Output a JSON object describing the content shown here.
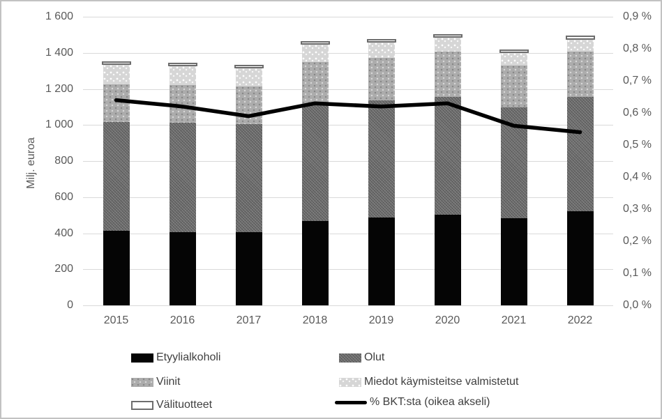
{
  "window": {
    "background": "#ffffff",
    "frame_border_color": "#c2c2c2"
  },
  "chart_data": {
    "type": "bar",
    "subtype": "stacked-column-with-line-overlay",
    "title": "",
    "grid": {
      "show": true,
      "color": "#d9d9d9",
      "orientation": "horizontal"
    },
    "categories": [
      "2015",
      "2016",
      "2017",
      "2018",
      "2019",
      "2020",
      "2021",
      "2022"
    ],
    "series": [
      {
        "key": "etyylialkoholi",
        "name": "Etyylialkoholi",
        "color": "#050505",
        "values": [
          415,
          406,
          404,
          469,
          487,
          503,
          485,
          520
        ]
      },
      {
        "key": "olut",
        "name": "Olut",
        "color": "#747474",
        "values": [
          601,
          607,
          599,
          640,
          649,
          652,
          611,
          636
        ]
      },
      {
        "key": "viinit",
        "name": "Viinit",
        "color": "#acacac",
        "values": [
          210,
          207,
          209,
          240,
          238,
          250,
          232,
          250
        ]
      },
      {
        "key": "miedot",
        "name": "Miedot käymisteitse valmistetut",
        "color": "#d6d6d6",
        "values": [
          106,
          106,
          103,
          97,
          84,
          78,
          71,
          68
        ]
      },
      {
        "key": "valituotteet",
        "name": "Välituotteet",
        "color": "#ffffff",
        "border_color": "#6d6d6d",
        "values": [
          16,
          19,
          19,
          19,
          19,
          21,
          19,
          22
        ]
      }
    ],
    "stack_totals": [
      1348,
      1345,
      1334,
      1465,
      1477,
      1504,
      1418,
      1496
    ],
    "line_series": {
      "key": "bkt",
      "name": "% BKT:sta (oikea akseli)",
      "color": "#000000",
      "axis": "right",
      "values": [
        0.64,
        0.62,
        0.59,
        0.63,
        0.62,
        0.63,
        0.56,
        0.54
      ]
    },
    "left_axis": {
      "title": "Milj. euroa",
      "min": 0,
      "max": 1600,
      "step": 200,
      "tick_labels": [
        "0",
        "200",
        "400",
        "600",
        "800",
        "1 000",
        "1 200",
        "1 400",
        "1 600"
      ],
      "text_color": "#595959"
    },
    "right_axis": {
      "title": "",
      "min": 0,
      "max": 0.9,
      "step": 0.1,
      "tick_labels": [
        "0,0 %",
        "0,1 %",
        "0,2 %",
        "0,3 %",
        "0,4 %",
        "0,5 %",
        "0,6 %",
        "0,7 %",
        "0,8 %",
        "0,9 %"
      ],
      "text_color": "#595959"
    },
    "legend": {
      "position": "bottom",
      "columns": 2,
      "text_color": "#3f3f3f",
      "entries": [
        "Etyylialkoholi",
        "Olut",
        "Viinit",
        "Miedot käymisteitse valmistetut",
        "Välituotteet",
        "% BKT:sta (oikea akseli)"
      ]
    }
  }
}
